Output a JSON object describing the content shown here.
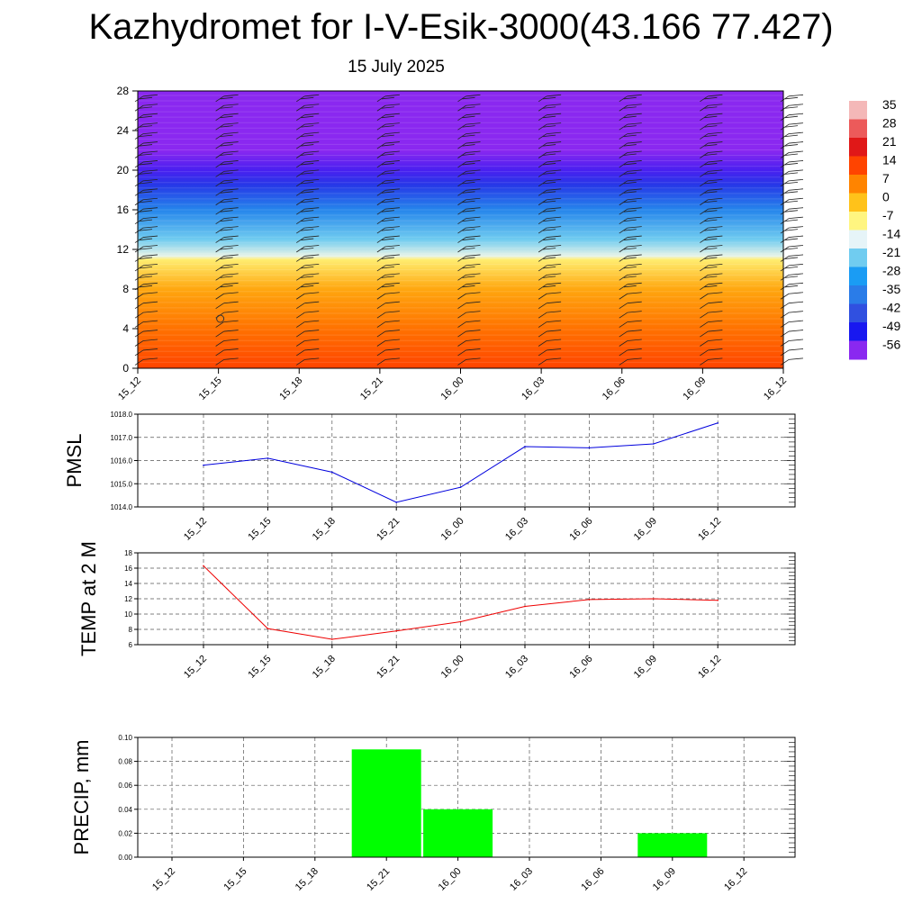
{
  "header": {
    "title": "Kazhydromet for I-V-Esik-3000(43.166 77.427)",
    "date": "15 July 2025"
  },
  "chart_data": [
    {
      "type": "heatmap",
      "name": "temperature-height-section",
      "x": [
        "15_12",
        "15_15",
        "15_18",
        "15_21",
        "16_00",
        "16_03",
        "16_06",
        "16_09",
        "16_12"
      ],
      "ylim": [
        0,
        28
      ],
      "yticks": [
        0,
        4,
        8,
        12,
        16,
        20,
        24,
        28
      ],
      "colorbar": {
        "labels": [
          "35",
          "28",
          "21",
          "14",
          "7",
          "0",
          "-7",
          "-14",
          "-21",
          "-28",
          "-35",
          "-42",
          "-49",
          "-56"
        ],
        "stops": [
          {
            "value": 35,
            "color": "#f4b8b8"
          },
          {
            "value": 28,
            "color": "#ec5a5a"
          },
          {
            "value": 21,
            "color": "#e01818"
          },
          {
            "value": 14,
            "color": "#ff4400"
          },
          {
            "value": 7,
            "color": "#ff8400"
          },
          {
            "value": 0,
            "color": "#ffc21a"
          },
          {
            "value": -7,
            "color": "#fff580"
          },
          {
            "value": -14,
            "color": "#e6f4f8"
          },
          {
            "value": -21,
            "color": "#70ccf0"
          },
          {
            "value": -28,
            "color": "#1a9cf4"
          },
          {
            "value": -35,
            "color": "#2a7ce8"
          },
          {
            "value": -42,
            "color": "#3050e0"
          },
          {
            "value": -49,
            "color": "#1818f0"
          },
          {
            "value": -56,
            "color": "#8a28f0"
          }
        ]
      },
      "profile": [
        {
          "height": 0,
          "temp": 14
        },
        {
          "height": 4,
          "temp": 9
        },
        {
          "height": 8,
          "temp": 3
        },
        {
          "height": 11,
          "temp": -6
        },
        {
          "height": 11.3,
          "temp": -13
        },
        {
          "height": 13,
          "temp": -21
        },
        {
          "height": 16,
          "temp": -33
        },
        {
          "height": 18.5,
          "temp": -45
        },
        {
          "height": 20,
          "temp": -52
        },
        {
          "height": 22,
          "temp": -56
        },
        {
          "height": 28,
          "temp": -58
        }
      ]
    },
    {
      "type": "line",
      "name": "pmsl",
      "ylabel": "PMSL",
      "x": [
        "15_12",
        "15_15",
        "15_18",
        "15_21",
        "16_00",
        "16_03",
        "16_06",
        "16_09",
        "16_12"
      ],
      "series": [
        {
          "values": [
            1015.8,
            1016.1,
            1015.5,
            1014.2,
            1014.85,
            1016.6,
            1016.55,
            1016.72,
            1017.62
          ],
          "color": "#0000dd"
        }
      ],
      "ylim": [
        1014.0,
        1018.0
      ],
      "yticks": [
        "1014.0",
        "1015.0",
        "1016.0",
        "1017.0",
        "1018.0"
      ],
      "grid": true
    },
    {
      "type": "line",
      "name": "temp-2m",
      "ylabel": "TEMP at 2 M",
      "x": [
        "15_12",
        "15_15",
        "15_18",
        "15_21",
        "16_00",
        "16_03",
        "16_06",
        "16_09",
        "16_12"
      ],
      "series": [
        {
          "values": [
            16.3,
            8.1,
            6.7,
            7.8,
            9.0,
            11.0,
            11.9,
            12.0,
            11.8
          ],
          "color": "#ee0000"
        }
      ],
      "ylim": [
        6,
        18
      ],
      "yticks": [
        "6",
        "8",
        "10",
        "12",
        "14",
        "16",
        "18"
      ],
      "grid": true
    },
    {
      "type": "bar",
      "name": "precip",
      "ylabel": "PRECIP, mm",
      "categories": [
        "15_12",
        "15_15",
        "15_18",
        "15_21",
        "16_00",
        "16_03",
        "16_06",
        "16_09",
        "16_12"
      ],
      "values": [
        0,
        0,
        0,
        0.09,
        0.04,
        0,
        0,
        0.02,
        0
      ],
      "bar_color": "#00ff00",
      "ylim": [
        0,
        0.1
      ],
      "yticks": [
        "0.00",
        "0.02",
        "0.04",
        "0.06",
        "0.08",
        "0.10"
      ],
      "grid": true
    }
  ]
}
